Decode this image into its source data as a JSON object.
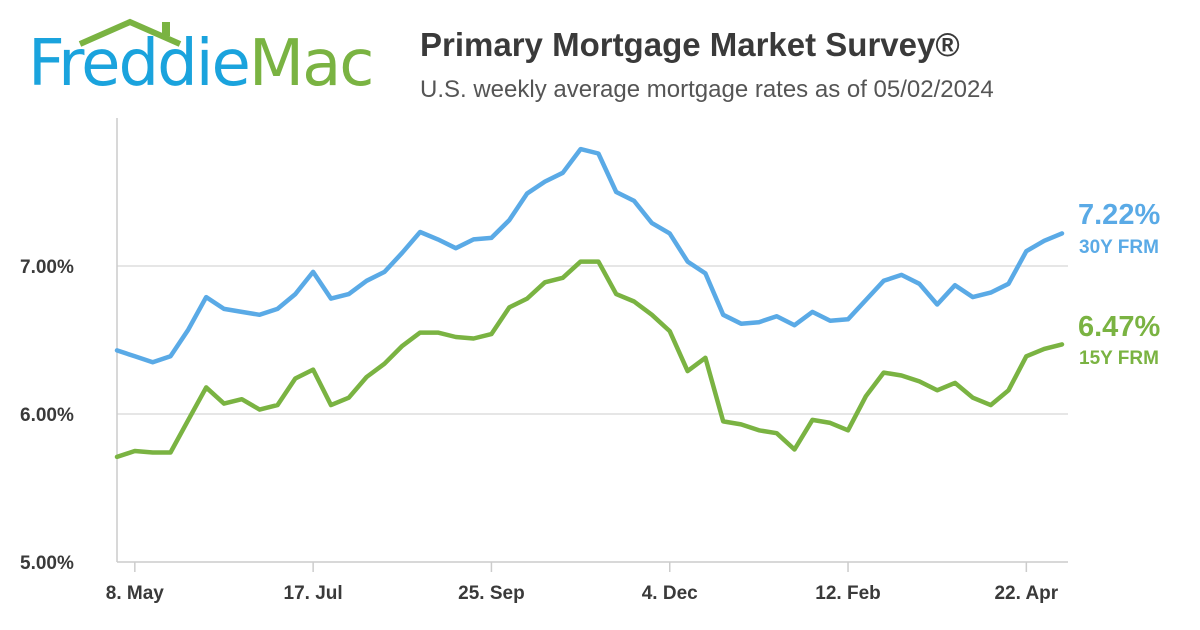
{
  "logo": {
    "text_part1": "Freddie",
    "text_part2": "Mac"
  },
  "header": {
    "title": "Primary Mortgage Market Survey®",
    "subtitle": "U.S. weekly average mortgage rates as of 05/02/2024"
  },
  "colors": {
    "series_30y": "#5aaae6",
    "series_15y": "#7ab342",
    "grid": "#dddddd",
    "axis": "#cccccc",
    "text": "#3a3a3a"
  },
  "chart_data": {
    "type": "line",
    "title": "Primary Mortgage Market Survey®",
    "subtitle": "U.S. weekly average mortgage rates as of 05/02/2024",
    "xlabel": "",
    "ylabel": "",
    "ylim": [
      5.0,
      8.0
    ],
    "yticks": [
      5.0,
      6.0,
      7.0
    ],
    "ytick_labels": [
      "5.00%",
      "6.00%",
      "7.00%"
    ],
    "grid": true,
    "xtick_labels": [
      "8. May",
      "17. Jul",
      "25. Sep",
      "4. Dec",
      "12. Feb",
      "22. Apr"
    ],
    "xtick_week_index": [
      1,
      11,
      21,
      31,
      41,
      51
    ],
    "series": [
      {
        "name": "30Y FRM",
        "end_label": "7.22%",
        "values": [
          6.43,
          6.39,
          6.35,
          6.39,
          6.57,
          6.79,
          6.71,
          6.69,
          6.67,
          6.71,
          6.81,
          6.96,
          6.78,
          6.81,
          6.9,
          6.96,
          7.09,
          7.23,
          7.18,
          7.12,
          7.18,
          7.19,
          7.31,
          7.49,
          7.57,
          7.63,
          7.79,
          7.76,
          7.5,
          7.44,
          7.29,
          7.22,
          7.03,
          6.95,
          6.67,
          6.61,
          6.62,
          6.66,
          6.6,
          6.69,
          6.63,
          6.64,
          6.77,
          6.9,
          6.94,
          6.88,
          6.74,
          6.87,
          6.79,
          6.82,
          6.88,
          7.1,
          7.17,
          7.22
        ]
      },
      {
        "name": "15Y FRM",
        "end_label": "6.47%",
        "values": [
          5.71,
          5.75,
          5.74,
          5.74,
          5.96,
          6.18,
          6.07,
          6.1,
          6.03,
          6.06,
          6.24,
          6.3,
          6.06,
          6.11,
          6.25,
          6.34,
          6.46,
          6.55,
          6.55,
          6.52,
          6.51,
          6.54,
          6.72,
          6.78,
          6.89,
          6.92,
          7.03,
          7.03,
          6.81,
          6.76,
          6.67,
          6.56,
          6.29,
          6.38,
          5.95,
          5.93,
          5.89,
          5.87,
          5.76,
          5.96,
          5.94,
          5.89,
          6.12,
          6.28,
          6.26,
          6.22,
          6.16,
          6.21,
          6.11,
          6.06,
          6.16,
          6.39,
          6.44,
          6.47
        ]
      }
    ]
  }
}
